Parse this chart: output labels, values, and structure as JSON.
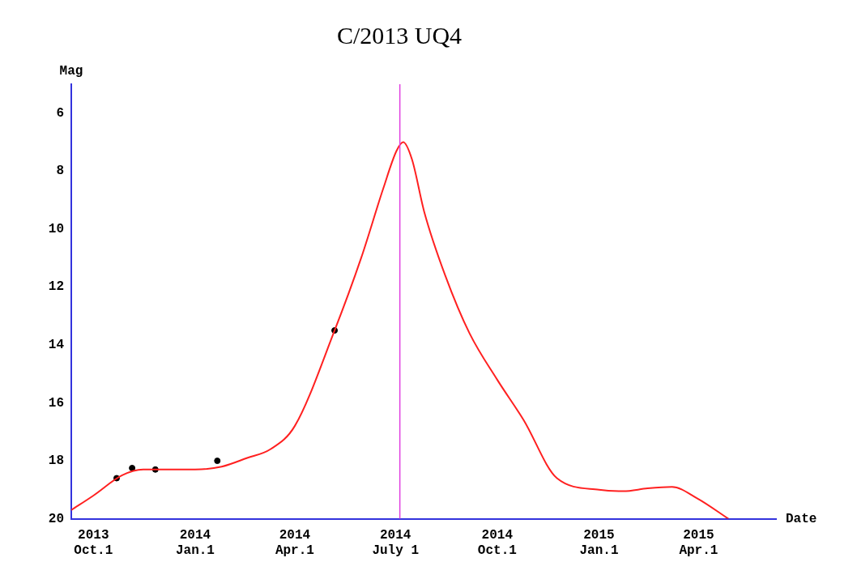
{
  "chart_data": {
    "type": "line",
    "title": "C/2013 UQ4",
    "xlabel": "Date",
    "ylabel": "Mag",
    "xlim": [
      "2013-09-11",
      "2015-06-10"
    ],
    "xticks": [
      {
        "value": "2013-10-01",
        "label": "2013 Oct.1"
      },
      {
        "value": "2014-01-01",
        "label": "2014 Jan.1"
      },
      {
        "value": "2014-04-01",
        "label": "2014 Apr.1"
      },
      {
        "value": "2014-07-01",
        "label": "2014 July 1"
      },
      {
        "value": "2014-10-01",
        "label": "2014 Oct.1"
      },
      {
        "value": "2015-01-01",
        "label": "2015 Jan.1"
      },
      {
        "value": "2015-04-01",
        "label": "2015 Apr.1"
      }
    ],
    "ylim": [
      20,
      5
    ],
    "yticks": [
      6,
      8,
      10,
      12,
      14,
      16,
      18,
      20
    ],
    "grid": false,
    "legend": false,
    "series": [
      {
        "color": "#ff2020",
        "marker": "none",
        "x": [
          "2013-09-11",
          "2013-10-01",
          "2013-10-27",
          "2013-11-15",
          "2013-12-04",
          "2014-01-01",
          "2014-01-25",
          "2014-02-17",
          "2014-03-10",
          "2014-04-01",
          "2014-05-07",
          "2014-05-31",
          "2014-06-20",
          "2014-07-02",
          "2014-07-08",
          "2014-07-16",
          "2014-07-27",
          "2014-08-15",
          "2014-09-06",
          "2014-10-01",
          "2014-10-25",
          "2014-11-24",
          "2015-01-01",
          "2015-01-23",
          "2015-02-14",
          "2015-03-08",
          "2015-03-31",
          "2015-04-28"
        ],
        "values": [
          19.7,
          19.2,
          18.5,
          18.3,
          18.3,
          18.3,
          18.2,
          17.9,
          17.6,
          16.8,
          13.5,
          11.0,
          8.6,
          7.3,
          7.0,
          7.6,
          9.4,
          11.6,
          13.6,
          15.2,
          16.6,
          18.6,
          19.0,
          19.05,
          18.95,
          18.9,
          19.3,
          20.0
        ]
      },
      {
        "type": "scatter",
        "color": "#000000",
        "marker": "circle",
        "x": [
          "2013-10-22",
          "2013-11-05",
          "2013-11-26",
          "2014-01-21",
          "2014-05-07"
        ],
        "values": [
          18.6,
          18.25,
          18.3,
          18.0,
          13.5
        ]
      }
    ],
    "ref_lines": [
      {
        "axis": "x",
        "value": "2014-07-05",
        "color": "#e040e0"
      }
    ]
  }
}
